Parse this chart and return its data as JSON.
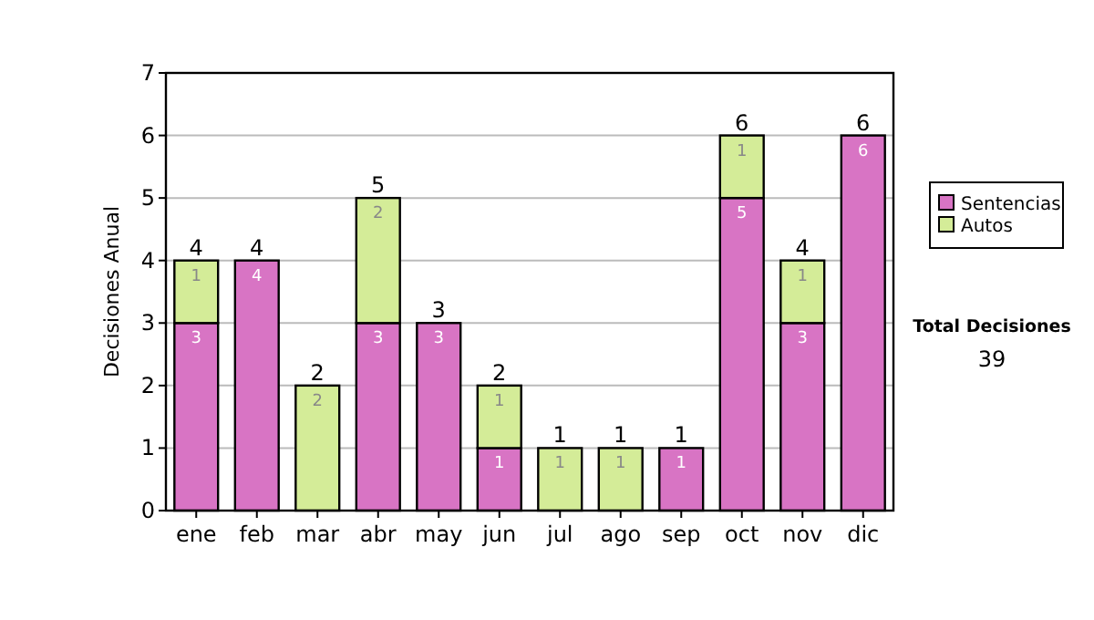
{
  "chart_data": {
    "type": "bar",
    "stacked": true,
    "ylabel": "Decisiones Anual",
    "categories": [
      "ene",
      "feb",
      "mar",
      "abr",
      "may",
      "jun",
      "jul",
      "ago",
      "sep",
      "oct",
      "nov",
      "dic"
    ],
    "series": [
      {
        "name": "Sentencias",
        "color": "#d874c4",
        "values": [
          3,
          4,
          null,
          3,
          3,
          1,
          null,
          null,
          1,
          5,
          3,
          6
        ]
      },
      {
        "name": "Autos",
        "color": "#d4ec98",
        "values": [
          1,
          null,
          2,
          2,
          null,
          1,
          1,
          1,
          null,
          1,
          1,
          null
        ]
      }
    ],
    "ylim": [
      0,
      7
    ],
    "yticks": [
      0,
      1,
      2,
      3,
      4,
      5,
      6,
      7
    ],
    "grid": "y",
    "legend": "right",
    "data_labels": true,
    "totals": [
      "4",
      "4",
      "2",
      "5",
      "3",
      "2",
      "1",
      "1",
      "1",
      "6",
      "4",
      "6"
    ],
    "annotations": [
      "Total Decisiones",
      "39"
    ]
  }
}
